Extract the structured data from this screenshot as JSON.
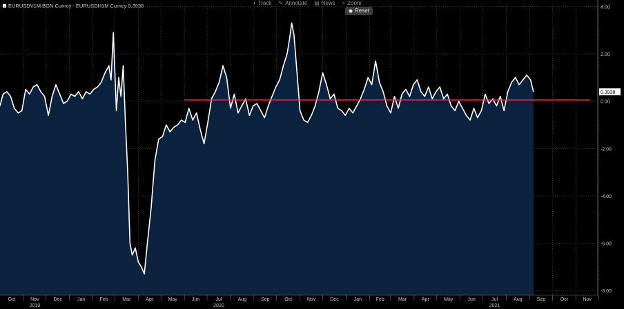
{
  "toolbar": {
    "track": "Track",
    "annotate": "Annotate",
    "news": "News",
    "zoom": "Zoom",
    "reset": "Reset"
  },
  "legend": {
    "text": "EURUSDV1M BGN Curncy - EURUSDH1M Curncy 0.3938"
  },
  "last_value_label": "0.3938",
  "colors": {
    "background": "#000000",
    "area_fill": "#0c2340",
    "line": "#ffffff",
    "reference_line": "#ff2a3c",
    "grid": "#5a5a5a"
  },
  "chart_data": {
    "type": "area",
    "title": "",
    "xlabel": "",
    "ylabel": "",
    "ylim": [
      -8.2,
      4.1
    ],
    "x_range": [
      "2019-10-01",
      "2021-11-30"
    ],
    "yticks": [
      {
        "value": 4,
        "label": "4.00"
      },
      {
        "value": 2,
        "label": "2.00"
      },
      {
        "value": 0,
        "label": "0.00"
      },
      {
        "value": -2,
        "label": "-2.00"
      },
      {
        "value": -4,
        "label": "-4.00"
      },
      {
        "value": -6,
        "label": "-6.00"
      },
      {
        "value": -8,
        "label": "-8.00"
      }
    ],
    "month_ticks": [
      "Oct",
      "Nov",
      "Dec",
      "Jan",
      "Feb",
      "Mar",
      "Apr",
      "May",
      "Jun",
      "Jul",
      "Aug",
      "Sep",
      "Oct",
      "Nov",
      "Dec",
      "Jan",
      "Feb",
      "Mar",
      "Apr",
      "May",
      "Jun",
      "Jul",
      "Aug",
      "Sep",
      "Oct",
      "Nov"
    ],
    "year_labels": [
      {
        "label": "2019",
        "month_index": 1
      },
      {
        "label": "2020",
        "month_index": 9
      },
      {
        "label": "2021",
        "month_index": 21
      }
    ],
    "reference_line": {
      "value": 0.05,
      "start": "2020-06-01",
      "end": "2021-11-20"
    },
    "last_value": 0.3938,
    "series": [
      {
        "name": "EURUSDV1M BGN Curncy - EURUSDH1M Curncy",
        "points": [
          [
            "2019-10-01",
            -0.2
          ],
          [
            "2019-10-05",
            0.3
          ],
          [
            "2019-10-10",
            0.4
          ],
          [
            "2019-10-15",
            0.2
          ],
          [
            "2019-10-20",
            -0.3
          ],
          [
            "2019-10-25",
            -0.5
          ],
          [
            "2019-10-30",
            -0.4
          ],
          [
            "2019-11-04",
            0.5
          ],
          [
            "2019-11-09",
            0.3
          ],
          [
            "2019-11-14",
            0.6
          ],
          [
            "2019-11-19",
            0.7
          ],
          [
            "2019-11-24",
            0.4
          ],
          [
            "2019-11-29",
            0.2
          ],
          [
            "2019-12-04",
            -0.6
          ],
          [
            "2019-12-09",
            0.2
          ],
          [
            "2019-12-14",
            0.7
          ],
          [
            "2019-12-19",
            0.3
          ],
          [
            "2019-12-24",
            -0.1
          ],
          [
            "2019-12-29",
            0.0
          ],
          [
            "2020-01-03",
            0.3
          ],
          [
            "2020-01-08",
            0.2
          ],
          [
            "2020-01-13",
            0.4
          ],
          [
            "2020-01-18",
            0.1
          ],
          [
            "2020-01-23",
            0.4
          ],
          [
            "2020-01-28",
            0.3
          ],
          [
            "2020-02-02",
            0.5
          ],
          [
            "2020-02-07",
            0.6
          ],
          [
            "2020-02-12",
            0.8
          ],
          [
            "2020-02-17",
            1.2
          ],
          [
            "2020-02-22",
            1.5
          ],
          [
            "2020-02-25",
            0.9
          ],
          [
            "2020-02-28",
            2.9
          ],
          [
            "2020-03-03",
            -0.4
          ],
          [
            "2020-03-06",
            1.0
          ],
          [
            "2020-03-09",
            0.2
          ],
          [
            "2020-03-12",
            1.5
          ],
          [
            "2020-03-15",
            -0.9
          ],
          [
            "2020-03-18",
            -3.0
          ],
          [
            "2020-03-21",
            -6.0
          ],
          [
            "2020-03-24",
            -6.5
          ],
          [
            "2020-03-28",
            -6.2
          ],
          [
            "2020-04-01",
            -6.8
          ],
          [
            "2020-04-05",
            -7.0
          ],
          [
            "2020-04-09",
            -7.3
          ],
          [
            "2020-04-13",
            -6.0
          ],
          [
            "2020-04-18",
            -4.5
          ],
          [
            "2020-04-23",
            -2.5
          ],
          [
            "2020-04-28",
            -1.6
          ],
          [
            "2020-05-03",
            -1.5
          ],
          [
            "2020-05-08",
            -1.0
          ],
          [
            "2020-05-13",
            -1.3
          ],
          [
            "2020-05-18",
            -1.1
          ],
          [
            "2020-05-23",
            -1.0
          ],
          [
            "2020-05-28",
            -0.8
          ],
          [
            "2020-06-02",
            -0.9
          ],
          [
            "2020-06-07",
            -0.3
          ],
          [
            "2020-06-12",
            -0.8
          ],
          [
            "2020-06-17",
            -0.5
          ],
          [
            "2020-06-22",
            -1.2
          ],
          [
            "2020-06-27",
            -1.8
          ],
          [
            "2020-07-02",
            -0.9
          ],
          [
            "2020-07-07",
            0.1
          ],
          [
            "2020-07-12",
            0.4
          ],
          [
            "2020-07-17",
            0.8
          ],
          [
            "2020-07-22",
            1.5
          ],
          [
            "2020-07-27",
            1.0
          ],
          [
            "2020-08-01",
            -0.3
          ],
          [
            "2020-08-06",
            0.3
          ],
          [
            "2020-08-11",
            -0.5
          ],
          [
            "2020-08-16",
            -0.2
          ],
          [
            "2020-08-21",
            0.1
          ],
          [
            "2020-08-26",
            -0.6
          ],
          [
            "2020-08-31",
            -0.2
          ],
          [
            "2020-09-05",
            -0.1
          ],
          [
            "2020-09-10",
            -0.4
          ],
          [
            "2020-09-15",
            -0.7
          ],
          [
            "2020-09-20",
            -0.2
          ],
          [
            "2020-09-25",
            0.2
          ],
          [
            "2020-09-30",
            0.6
          ],
          [
            "2020-10-05",
            0.9
          ],
          [
            "2020-10-10",
            1.5
          ],
          [
            "2020-10-15",
            2.0
          ],
          [
            "2020-10-18",
            2.6
          ],
          [
            "2020-10-21",
            3.3
          ],
          [
            "2020-10-24",
            2.8
          ],
          [
            "2020-10-28",
            1.2
          ],
          [
            "2020-11-01",
            -0.4
          ],
          [
            "2020-11-06",
            -0.8
          ],
          [
            "2020-11-11",
            -0.9
          ],
          [
            "2020-11-16",
            -0.6
          ],
          [
            "2020-11-21",
            -0.2
          ],
          [
            "2020-11-26",
            0.4
          ],
          [
            "2020-12-01",
            1.2
          ],
          [
            "2020-12-06",
            0.7
          ],
          [
            "2020-12-11",
            0.1
          ],
          [
            "2020-12-16",
            0.3
          ],
          [
            "2020-12-21",
            -0.3
          ],
          [
            "2020-12-26",
            -0.4
          ],
          [
            "2020-12-31",
            -0.6
          ],
          [
            "2021-01-05",
            -0.3
          ],
          [
            "2021-01-10",
            -0.5
          ],
          [
            "2021-01-15",
            -0.2
          ],
          [
            "2021-01-20",
            0.1
          ],
          [
            "2021-01-25",
            0.5
          ],
          [
            "2021-01-30",
            1.0
          ],
          [
            "2021-02-04",
            0.7
          ],
          [
            "2021-02-09",
            1.7
          ],
          [
            "2021-02-14",
            0.8
          ],
          [
            "2021-02-19",
            0.4
          ],
          [
            "2021-02-24",
            -0.2
          ],
          [
            "2021-03-01",
            -0.5
          ],
          [
            "2021-03-06",
            0.2
          ],
          [
            "2021-03-11",
            -0.3
          ],
          [
            "2021-03-16",
            0.3
          ],
          [
            "2021-03-21",
            0.5
          ],
          [
            "2021-03-26",
            0.2
          ],
          [
            "2021-03-31",
            0.7
          ],
          [
            "2021-04-05",
            0.9
          ],
          [
            "2021-04-10",
            0.4
          ],
          [
            "2021-04-15",
            0.2
          ],
          [
            "2021-04-20",
            0.6
          ],
          [
            "2021-04-25",
            0.1
          ],
          [
            "2021-04-30",
            0.4
          ],
          [
            "2021-05-05",
            0.6
          ],
          [
            "2021-05-10",
            0.1
          ],
          [
            "2021-05-15",
            0.3
          ],
          [
            "2021-05-20",
            -0.2
          ],
          [
            "2021-05-25",
            -0.4
          ],
          [
            "2021-05-30",
            0.0
          ],
          [
            "2021-06-04",
            -0.3
          ],
          [
            "2021-06-09",
            -0.6
          ],
          [
            "2021-06-14",
            -0.8
          ],
          [
            "2021-06-19",
            -0.3
          ],
          [
            "2021-06-24",
            -0.7
          ],
          [
            "2021-06-29",
            -0.4
          ],
          [
            "2021-07-04",
            0.3
          ],
          [
            "2021-07-09",
            -0.1
          ],
          [
            "2021-07-14",
            0.1
          ],
          [
            "2021-07-19",
            -0.2
          ],
          [
            "2021-07-24",
            0.2
          ],
          [
            "2021-07-29",
            -0.4
          ],
          [
            "2021-08-03",
            0.4
          ],
          [
            "2021-08-08",
            0.8
          ],
          [
            "2021-08-13",
            1.0
          ],
          [
            "2021-08-18",
            0.7
          ],
          [
            "2021-08-23",
            0.9
          ],
          [
            "2021-08-28",
            1.1
          ],
          [
            "2021-09-02",
            0.9
          ],
          [
            "2021-09-06",
            0.3938
          ]
        ]
      }
    ]
  }
}
